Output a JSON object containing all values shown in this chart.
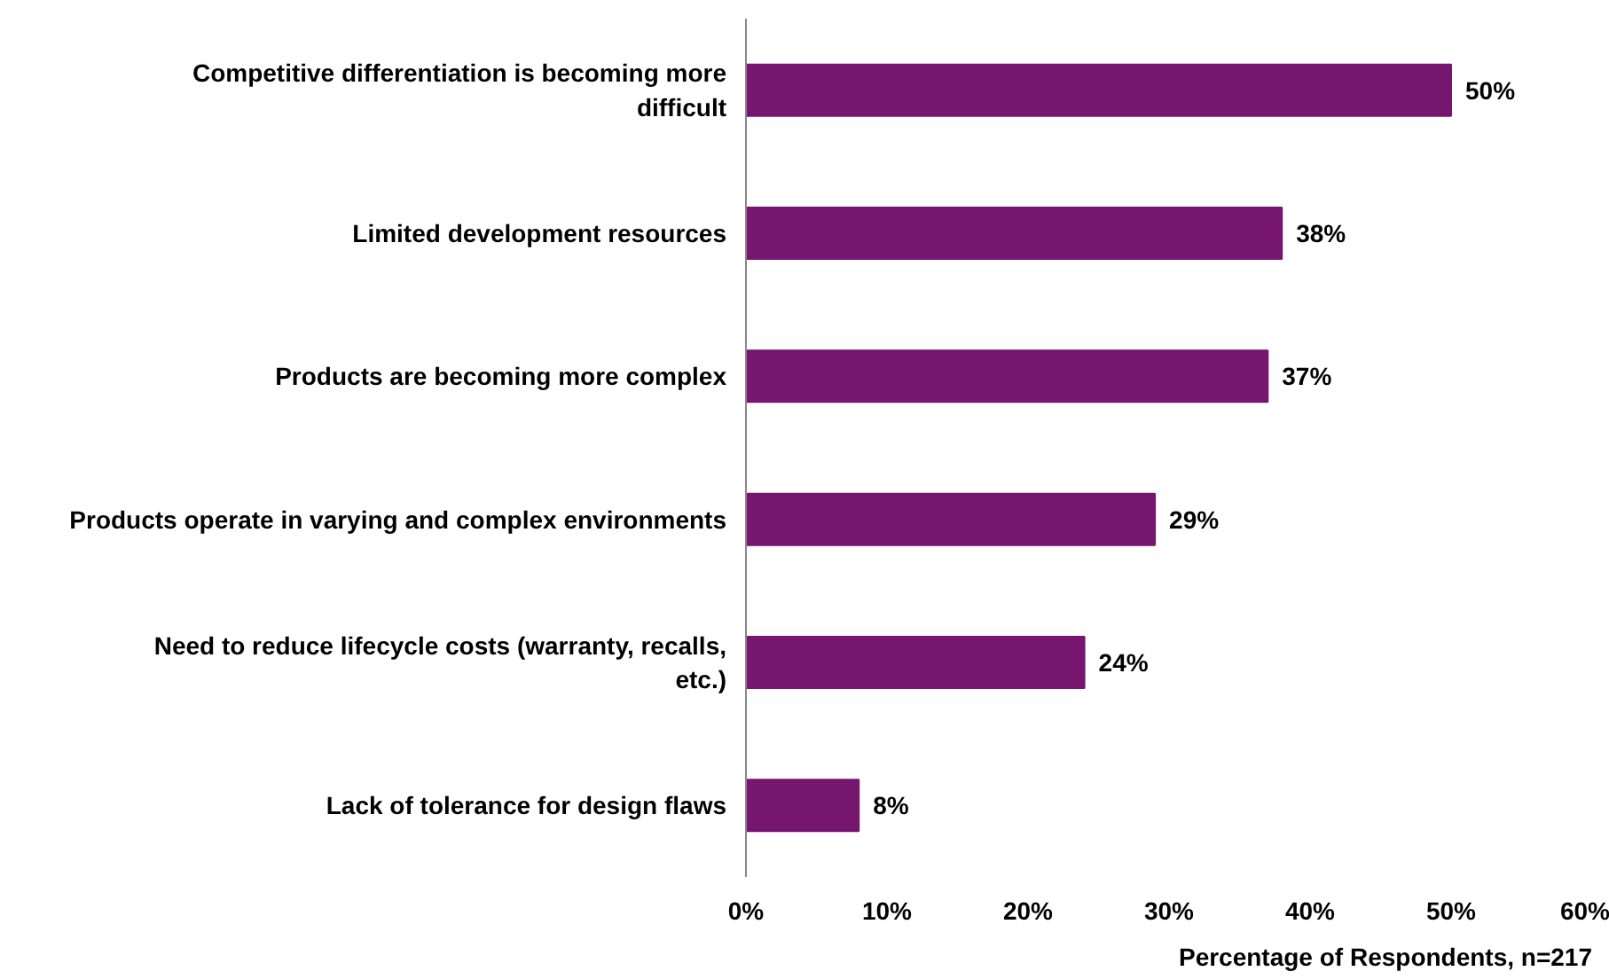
{
  "chart_data": {
    "type": "bar",
    "orientation": "horizontal",
    "xlabel": "Percentage of Respondents, n=217",
    "categories": [
      "Competitive differentiation is becoming more difficult",
      "Limited development resources",
      "Products are becoming more complex",
      "Products operate in varying and complex environments",
      "Need to reduce lifecycle costs (warranty, recalls, etc.)",
      "Lack of tolerance for design flaws"
    ],
    "values": [
      50,
      38,
      37,
      29,
      24,
      8
    ],
    "value_labels": [
      "50%",
      "38%",
      "37%",
      "29%",
      "24%",
      "8%"
    ],
    "color": "#76166f",
    "grid": false,
    "xlim": [
      0,
      60
    ],
    "xticks": [
      {
        "value": 0,
        "label": "0%"
      },
      {
        "value": 10,
        "label": "10%"
      },
      {
        "value": 20,
        "label": "20%"
      },
      {
        "value": 30,
        "label": "30%"
      },
      {
        "value": 40,
        "label": "40%"
      },
      {
        "value": 50,
        "label": "50%"
      },
      {
        "value": 60,
        "label": "60%"
      }
    ]
  }
}
